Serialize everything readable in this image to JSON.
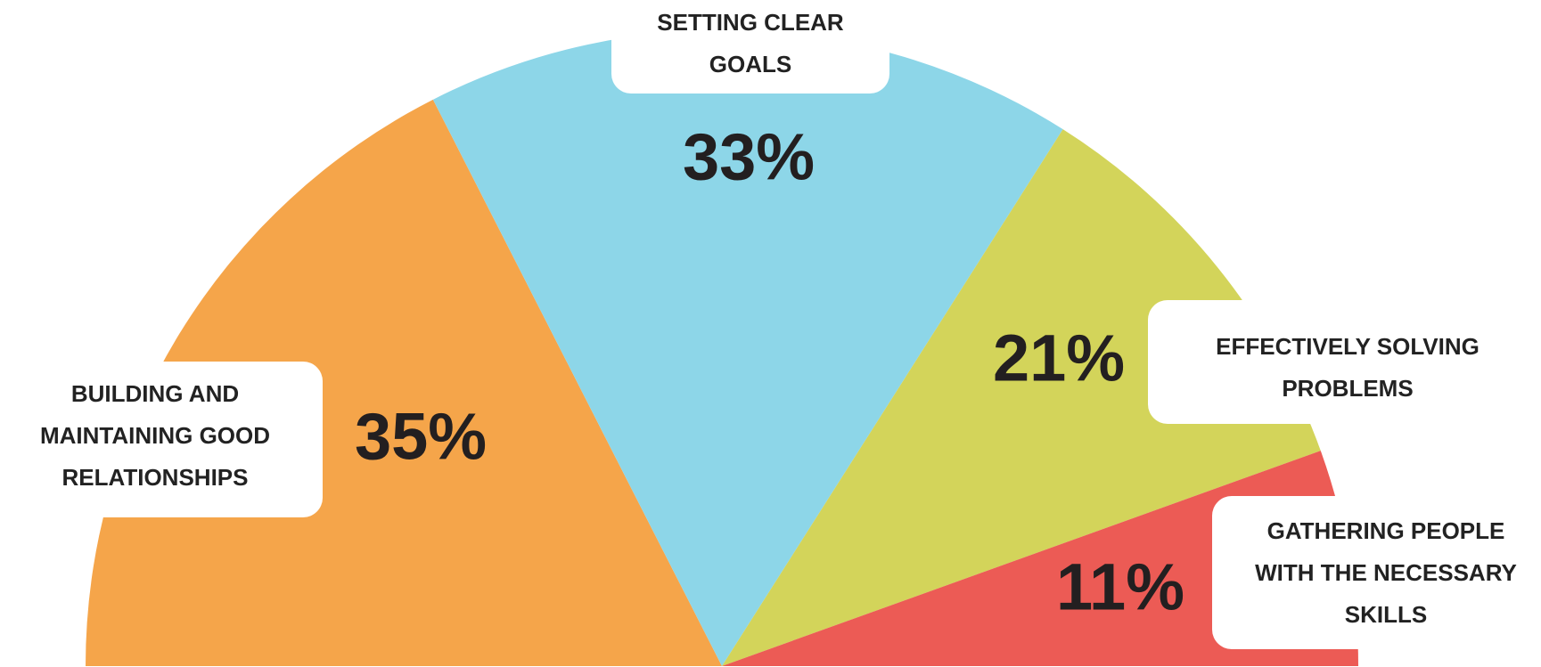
{
  "chart_data": {
    "type": "pie",
    "half": true,
    "categories": [
      "BUILDING AND MAINTAINING GOOD RELATIONSHIPS",
      "SETTING CLEAR GOALS",
      "EFFECTIVELY SOLVING PROBLEMS",
      "GATHERING PEOPLE WITH THE NECESSARY SKILLS"
    ],
    "values": [
      35,
      33,
      21,
      11
    ],
    "value_labels": [
      "35%",
      "33%",
      "21%",
      "11%"
    ],
    "colors": [
      "#f5a54a",
      "#8dd6e8",
      "#d3d45a",
      "#ec5b55"
    ]
  }
}
